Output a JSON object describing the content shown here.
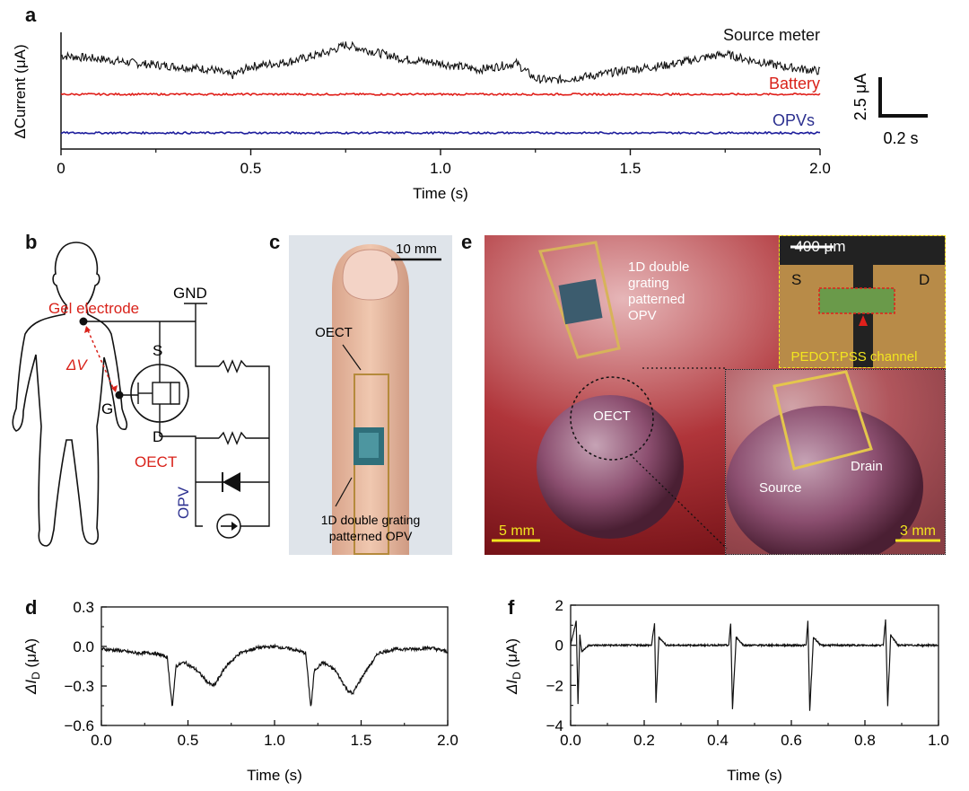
{
  "panels": {
    "a": {
      "letter": "a",
      "ylabel": "ΔCurrent (μA)",
      "xlabel": "Time (s)",
      "ticks": [
        "0",
        "0.5",
        "1.0",
        "1.5",
        "2.0"
      ],
      "legend": {
        "source": "Source meter",
        "battery": "Battery",
        "opvs": "OPVs"
      },
      "scalebar": {
        "y": "2.5 μA",
        "x": "0.2 s"
      }
    },
    "b": {
      "letter": "b",
      "gel": "Gel electrode",
      "dv": "ΔV",
      "gnd": "GND",
      "s": "S",
      "g": "G",
      "d": "D",
      "oect": "OECT",
      "opv": "OPV"
    },
    "c": {
      "letter": "c",
      "scale": "10 mm",
      "oect": "OECT",
      "opv_line1": "1D double grating",
      "opv_line2": "patterned OPV"
    },
    "e": {
      "letter": "e",
      "opv_l1": "1D double",
      "opv_l2": "grating",
      "opv_l3": "patterned",
      "opv_l4": "OPV",
      "oect": "OECT",
      "scale_main": "5 mm",
      "scale_inset": "400 μm",
      "s": "S",
      "d": "D",
      "channel": "PEDOT:PSS channel",
      "source": "Source",
      "drain": "Drain",
      "scale_zoom": "3 mm"
    },
    "d": {
      "letter": "d",
      "ylabel_main": "ΔI",
      "ylabel_sub": "D",
      "ylabel_unit": " (μA)",
      "xlabel": "Time (s)",
      "yticks": [
        "0.3",
        "0.0",
        "−0.3",
        "−0.6"
      ],
      "xticks": [
        "0.0",
        "0.5",
        "1.0",
        "1.5",
        "2.0"
      ]
    },
    "f": {
      "letter": "f",
      "ylabel_main": "ΔI",
      "ylabel_sub": "D",
      "ylabel_unit": " (μA)",
      "xlabel": "Time (s)",
      "yticks": [
        "2",
        "0",
        "−2",
        "−4"
      ],
      "xticks": [
        "0.0",
        "0.2",
        "0.4",
        "0.6",
        "0.8",
        "1.0"
      ]
    }
  },
  "colors": {
    "source": "#111111",
    "battery": "#e0201b",
    "opvs": "#1d1d9c",
    "inset_text": "#f2e51f",
    "red_label": "#d9221a",
    "blue_label": "#2b2f8f"
  },
  "chart_data": [
    {
      "panel": "a",
      "type": "line",
      "title": "",
      "xlabel": "Time (s)",
      "ylabel": "ΔCurrent (μA)",
      "xlim": [
        0,
        2.0
      ],
      "series": [
        {
          "name": "Source meter",
          "x": [
            0,
            0.1,
            0.2,
            0.3,
            0.4,
            0.45,
            0.5,
            0.6,
            0.7,
            0.75,
            0.8,
            0.9,
            1.0,
            1.1,
            1.2,
            1.25,
            1.3,
            1.4,
            1.5,
            1.6,
            1.7,
            1.75,
            1.8,
            1.9,
            2.0
          ],
          "values": [
            2.5,
            2.3,
            2.0,
            1.8,
            1.6,
            1.2,
            1.8,
            2.1,
            2.7,
            3.2,
            2.9,
            2.3,
            2.0,
            1.6,
            2.0,
            1.0,
            0.9,
            1.2,
            1.6,
            1.9,
            2.4,
            2.6,
            2.3,
            1.8,
            1.5
          ]
        },
        {
          "name": "Battery",
          "x": [
            0,
            2.0
          ],
          "values": [
            0,
            0
          ]
        },
        {
          "name": "OPVs",
          "x": [
            0,
            2.0
          ],
          "values": [
            -2.5,
            -2.5
          ]
        }
      ]
    },
    {
      "panel": "d",
      "type": "line",
      "xlabel": "Time (s)",
      "ylabel": "ΔID (μA)",
      "xlim": [
        0,
        2.0
      ],
      "ylim": [
        -0.6,
        0.3
      ],
      "series": [
        {
          "x": [
            0,
            0.1,
            0.2,
            0.3,
            0.38,
            0.41,
            0.43,
            0.48,
            0.55,
            0.62,
            0.65,
            0.72,
            0.8,
            0.9,
            1.0,
            1.1,
            1.18,
            1.21,
            1.23,
            1.28,
            1.35,
            1.42,
            1.45,
            1.52,
            1.6,
            1.7,
            1.8,
            1.9,
            2.0
          ],
          "values": [
            -0.02,
            -0.03,
            -0.05,
            -0.05,
            -0.08,
            -0.47,
            -0.15,
            -0.12,
            -0.18,
            -0.28,
            -0.3,
            -0.15,
            -0.05,
            -0.01,
            0.0,
            -0.02,
            -0.05,
            -0.47,
            -0.18,
            -0.12,
            -0.18,
            -0.33,
            -0.36,
            -0.2,
            -0.05,
            -0.02,
            -0.02,
            -0.01,
            -0.04
          ]
        }
      ]
    },
    {
      "panel": "f",
      "type": "line",
      "xlabel": "Time (s)",
      "ylabel": "ΔID (μA)",
      "xlim": [
        0,
        1.0
      ],
      "ylim": [
        -4,
        2
      ],
      "series": [
        {
          "x": [
            0,
            0.015,
            0.02,
            0.025,
            0.03,
            0.05,
            0.22,
            0.228,
            0.232,
            0.24,
            0.26,
            0.43,
            0.435,
            0.44,
            0.45,
            0.47,
            0.64,
            0.645,
            0.65,
            0.66,
            0.68,
            0.85,
            0.856,
            0.862,
            0.87,
            0.89,
            1.0
          ],
          "values": [
            0,
            1.2,
            -2.9,
            0.5,
            -0.3,
            0,
            0,
            1.1,
            -2.9,
            0.4,
            0,
            0,
            1.1,
            -3.2,
            0.4,
            0,
            0,
            1.2,
            -3.3,
            0.4,
            0,
            0,
            1.3,
            -3.0,
            0.5,
            0,
            0
          ]
        }
      ]
    }
  ]
}
